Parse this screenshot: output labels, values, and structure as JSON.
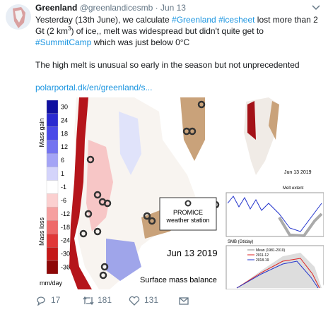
{
  "tweet": {
    "author_name": "Greenland",
    "handle": "@greenlandicesmb",
    "date": "· Jun 13",
    "paragraph_1": [
      {
        "text": "Yesterday (13th June), we calculate "
      },
      {
        "text": "#Greenland",
        "kind": "hashtag"
      },
      {
        "text": " "
      },
      {
        "text": "#icesheet",
        "kind": "hashtag"
      },
      {
        "text": " lost more than 2 Gt (2 km"
      },
      {
        "text": "3",
        "kind": "sup"
      },
      {
        "text": ") of ice,, melt was widespread but didn't quite get to "
      },
      {
        "text": "#SummitCamp",
        "kind": "hashtag"
      },
      {
        "text": " which was just below 0°C"
      }
    ],
    "paragraph_2": "The high melt is unusual so early in the season but not unprecedented",
    "link": "polarportal.dk/en/greenland/s...",
    "image": {
      "mass_gain": "Mass gain",
      "mass_loss": "Mass loss",
      "unit": "mm/day",
      "scale": [
        30,
        24,
        18,
        12,
        6,
        1,
        -1,
        -6,
        -12,
        -18,
        -24,
        -30,
        -36
      ],
      "station": "PROMICE weather station",
      "date": "Jun 13 2019",
      "caption": "Surface mass balance",
      "inset_date": "Jun 13 2019",
      "melt_extent": "Melt extent",
      "smb": "SMB (Gt/day)",
      "legend": [
        "Mean (1981-2010)",
        "2011-12",
        "2018-19"
      ]
    },
    "replies": 17,
    "retweets": 181,
    "likes": 131
  }
}
